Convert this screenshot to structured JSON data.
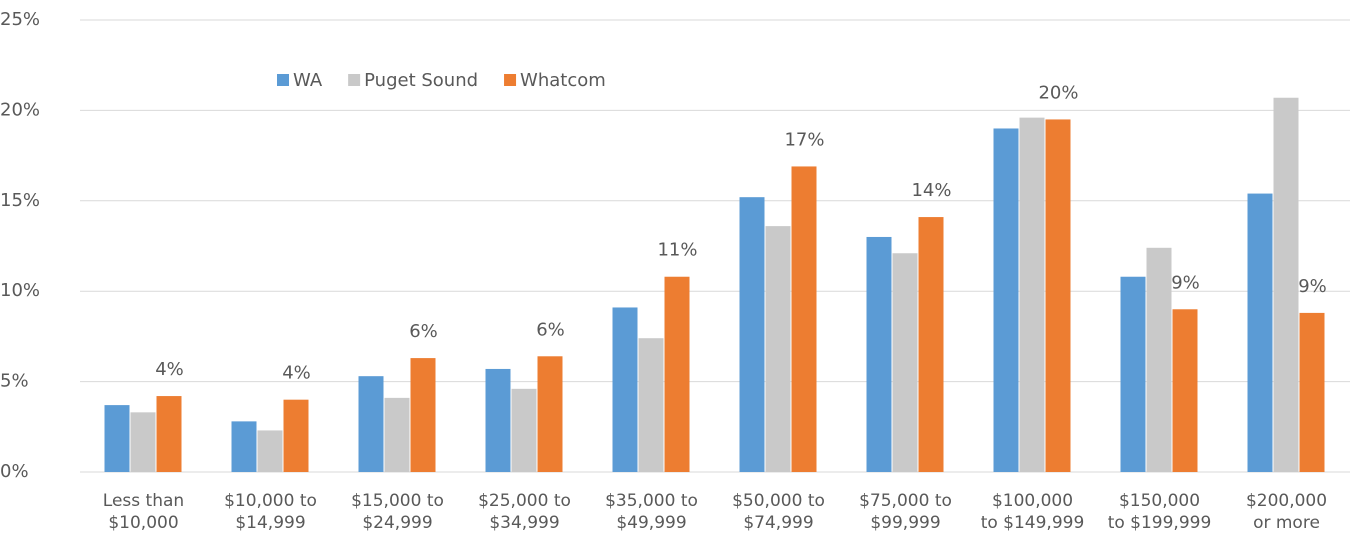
{
  "chart_data": {
    "type": "bar",
    "categories": [
      "Less than\n$10,000",
      "$10,000 to\n$14,999",
      "$15,000 to\n$24,999",
      "$25,000 to\n$34,999",
      "$35,000 to\n$49,999",
      "$50,000 to\n$74,999",
      "$75,000 to\n$99,999",
      "$100,000\nto $149,999",
      "$150,000\nto $199,999",
      "$200,000\nor more"
    ],
    "series": [
      {
        "name": "WA",
        "color": "#5b9bd5",
        "values": [
          3.7,
          2.8,
          5.3,
          5.7,
          9.1,
          15.2,
          13.0,
          19.0,
          10.8,
          15.4
        ]
      },
      {
        "name": "Puget Sound",
        "color": "#c9c9c9",
        "values": [
          3.3,
          2.3,
          4.1,
          4.6,
          7.4,
          13.6,
          12.1,
          19.6,
          12.4,
          20.7
        ]
      },
      {
        "name": "Whatcom",
        "color": "#ed7d31",
        "values": [
          4.2,
          4.0,
          6.3,
          6.4,
          10.8,
          16.9,
          14.1,
          19.5,
          9.0,
          8.8
        ],
        "value_labels": [
          "4%",
          "4%",
          "6%",
          "6%",
          "11%",
          "17%",
          "14%",
          "20%",
          "9%",
          "9%"
        ]
      }
    ],
    "ylim": [
      0,
      25
    ],
    "yticks": [
      {
        "value": 0,
        "label": "0%"
      },
      {
        "value": 5,
        "label": "5%"
      },
      {
        "value": 10,
        "label": "10%"
      },
      {
        "value": 15,
        "label": "15%"
      },
      {
        "value": 20,
        "label": "20%"
      },
      {
        "value": 25,
        "label": "25%"
      }
    ],
    "grid": true,
    "legend": "top"
  }
}
